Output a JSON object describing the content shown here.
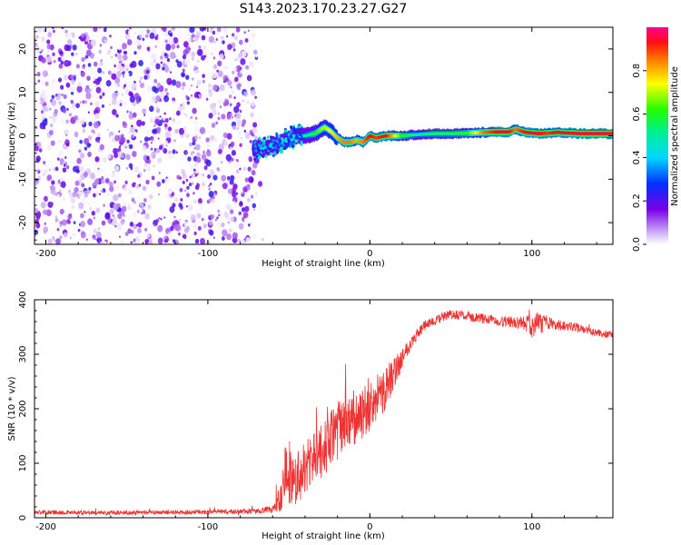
{
  "figure_title": "S143.2023.170.23.27.G27",
  "chart_data": [
    {
      "type": "heatmap",
      "title": "S143.2023.170.23.27.G27",
      "xlabel": "Height of straight line (km)",
      "ylabel": "Frequency (Hz)",
      "xlim": [
        -207,
        150
      ],
      "ylim": [
        -25,
        25
      ],
      "xticks": [
        -200,
        -100,
        0,
        100
      ],
      "yticks": [
        -20,
        -10,
        0,
        10,
        20
      ],
      "noise_region": {
        "x_from": -207,
        "x_to": -70,
        "freq_from": -25,
        "freq_to": 25,
        "amplitude_range": [
          0.0,
          0.25
        ]
      },
      "signal_ridge": {
        "x": [
          -72,
          -65,
          -58,
          -52,
          -46,
          -40,
          -34,
          -28,
          -24,
          -20,
          -16,
          -12,
          -8,
          -4,
          0,
          4,
          10,
          20,
          30,
          40,
          50,
          60,
          70,
          80,
          86,
          90,
          96,
          104,
          110,
          116,
          120,
          130,
          140,
          150
        ],
        "frequency": [
          -3,
          -3,
          -2,
          -1,
          0,
          0,
          0.5,
          2,
          1,
          -0.5,
          -1.5,
          -1.5,
          -1,
          -1.5,
          0,
          -0.5,
          0,
          0,
          0.3,
          0.5,
          0.5,
          0.6,
          0.8,
          0.9,
          0.9,
          1.5,
          0.8,
          0.5,
          0.6,
          0.8,
          0.7,
          0.5,
          0.5,
          0.5
        ],
        "amplitude": [
          0.25,
          0.3,
          0.35,
          0.35,
          0.4,
          0.5,
          0.6,
          0.7,
          0.75,
          0.8,
          0.85,
          0.85,
          0.8,
          0.85,
          0.95,
          0.9,
          0.95,
          0.6,
          0.5,
          0.55,
          0.55,
          0.6,
          0.85,
          0.95,
          0.95,
          0.85,
          0.95,
          0.95,
          0.9,
          0.95,
          0.95,
          0.95,
          0.95,
          0.95
        ]
      },
      "colorbar": {
        "label": "Normalized spectral amplitude",
        "range": [
          0.0,
          1.0
        ],
        "ticks": [
          0.0,
          0.2,
          0.4,
          0.6,
          0.8
        ],
        "tick_labels": [
          "0.0",
          "0.2",
          "0.4",
          "0.6",
          "0.8"
        ]
      }
    },
    {
      "type": "line",
      "xlabel": "Height of straight line (km)",
      "ylabel": "SNR (10 * v/v)",
      "xlim": [
        -207,
        150
      ],
      "ylim": [
        0,
        400
      ],
      "xticks": [
        -200,
        -100,
        0,
        100
      ],
      "yticks": [
        0,
        100,
        200,
        300,
        400
      ],
      "color": "#ee3333",
      "series": [
        {
          "name": "SNR",
          "x": [
            -207,
            -190,
            -170,
            -150,
            -130,
            -110,
            -90,
            -70,
            -60,
            -55,
            -52,
            -50,
            -48,
            -45,
            -40,
            -35,
            -30,
            -25,
            -20,
            -15,
            -10,
            -5,
            0,
            5,
            10,
            15,
            20,
            25,
            30,
            35,
            40,
            45,
            50,
            55,
            60,
            65,
            70,
            75,
            80,
            85,
            90,
            95,
            100,
            105,
            110,
            115,
            120,
            125,
            130,
            135,
            140,
            145,
            150
          ],
          "mean": [
            10,
            10,
            9,
            9,
            10,
            10,
            11,
            12,
            15,
            40,
            80,
            90,
            60,
            80,
            90,
            110,
            120,
            140,
            160,
            170,
            180,
            190,
            200,
            220,
            240,
            265,
            295,
            320,
            340,
            355,
            362,
            368,
            372,
            372,
            370,
            368,
            365,
            363,
            360,
            360,
            358,
            357,
            355,
            356,
            356,
            354,
            352,
            350,
            347,
            342,
            340,
            338,
            335
          ],
          "spread": [
            8,
            8,
            8,
            8,
            8,
            8,
            9,
            10,
            15,
            60,
            130,
            140,
            100,
            110,
            100,
            100,
            100,
            110,
            110,
            110,
            110,
            100,
            90,
            90,
            80,
            60,
            40,
            25,
            22,
            20,
            18,
            18,
            18,
            18,
            18,
            18,
            18,
            18,
            18,
            20,
            22,
            25,
            50,
            40,
            25,
            20,
            18,
            18,
            16,
            15,
            14,
            14,
            12
          ]
        }
      ]
    }
  ]
}
